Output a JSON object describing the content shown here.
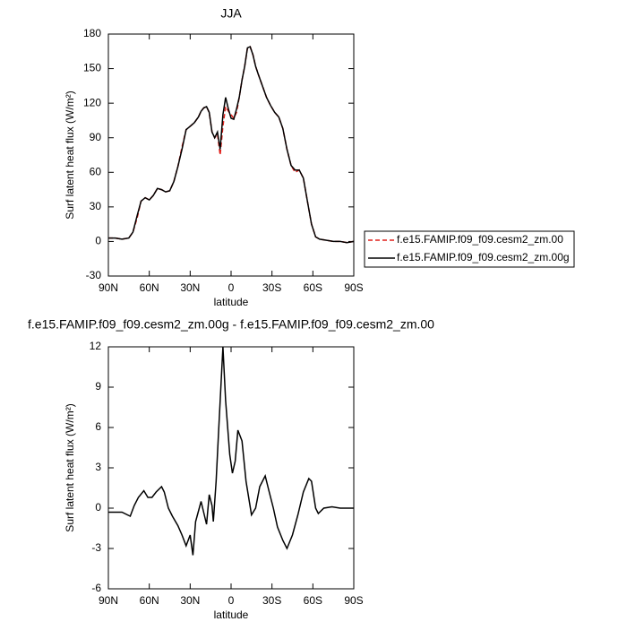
{
  "chart_data": [
    {
      "type": "line",
      "title": "JJA",
      "xlabel": "latitude",
      "ylabel": "Surf latent heat flux (W/m²)",
      "x": [
        90,
        85,
        80,
        75,
        72,
        69,
        66,
        63,
        60,
        57,
        54,
        51,
        48,
        45,
        42,
        39,
        36,
        33,
        30,
        27,
        24,
        22,
        20,
        18,
        16,
        14,
        12,
        10,
        8,
        6,
        4,
        2,
        0,
        -2,
        -4,
        -6,
        -8,
        -10,
        -12,
        -14,
        -16,
        -18,
        -20,
        -23,
        -26,
        -29,
        -32,
        -35,
        -38,
        -41,
        -44,
        -47,
        -50,
        -53,
        -56,
        -59,
        -62,
        -65,
        -70,
        -75,
        -80,
        -85,
        -90
      ],
      "series": [
        {
          "name": "f.e15.FAMIP.f09_f09.cesm2_zm.00",
          "color": "#e0201b",
          "line_style": "dashed",
          "values": [
            3,
            3,
            2,
            3,
            8,
            20,
            35,
            38,
            36,
            40,
            46,
            45,
            43,
            44,
            52,
            65,
            82,
            97,
            100,
            103,
            108,
            113,
            116,
            117,
            112,
            95,
            90,
            93,
            75,
            100,
            117,
            113,
            110,
            107,
            112,
            125,
            140,
            152,
            168,
            169,
            162,
            152,
            145,
            135,
            125,
            118,
            112,
            108,
            98,
            80,
            66,
            60,
            62,
            55,
            35,
            15,
            4,
            2,
            1,
            0,
            0,
            -1,
            0
          ]
        },
        {
          "name": "f.e15.FAMIP.f09_f09.cesm2_zm.00g",
          "color": "#000000",
          "line_style": "solid",
          "values": [
            3,
            3,
            2,
            3,
            8,
            22,
            35,
            38,
            36,
            40,
            46,
            45,
            43,
            44,
            52,
            65,
            80,
            97,
            100,
            103,
            108,
            113,
            116,
            117,
            112,
            95,
            90,
            95,
            80,
            110,
            125,
            115,
            107,
            106,
            115,
            125,
            140,
            152,
            168,
            169,
            162,
            152,
            145,
            135,
            125,
            118,
            112,
            108,
            98,
            80,
            66,
            62,
            62,
            55,
            35,
            15,
            4,
            2,
            1,
            0,
            0,
            -1,
            0
          ]
        }
      ],
      "xlim": [
        90,
        -90
      ],
      "xticks": [
        {
          "value": 90,
          "label": "90N"
        },
        {
          "value": 60,
          "label": "60N"
        },
        {
          "value": 30,
          "label": "30N"
        },
        0,
        {
          "value": -30,
          "label": "30S"
        },
        {
          "value": -60,
          "label": "60S"
        },
        {
          "value": -90,
          "label": "90S"
        }
      ],
      "ylim": [
        -30,
        180
      ],
      "yticks": [
        -30,
        0,
        30,
        60,
        90,
        120,
        150,
        180
      ],
      "legend": "right"
    },
    {
      "type": "line",
      "title": "f.e15.FAMIP.f09_f09.cesm2_zm.00g - f.e15.FAMIP.f09_f09.cesm2_zm.00",
      "xlabel": "latitude",
      "ylabel": "Surf latent heat flux (W/m²)",
      "x": [
        90,
        80,
        74,
        71,
        68,
        64,
        61,
        58,
        55,
        51,
        49,
        46,
        43,
        39,
        36,
        33,
        30,
        28,
        26,
        22,
        18,
        16,
        14,
        13,
        11,
        9,
        6,
        4,
        1,
        -1,
        -3,
        -5,
        -8,
        -11,
        -15,
        -18,
        -21,
        -25,
        -28,
        -31,
        -34,
        -38,
        -41,
        -45,
        -49,
        -53,
        -57,
        -59,
        -62,
        -64,
        -68,
        -74,
        -80,
        -90
      ],
      "series": [
        {
          "color": "#000000",
          "line_style": "solid",
          "values": [
            -0.3,
            -0.3,
            -0.6,
            0.2,
            0.8,
            1.3,
            0.8,
            0.8,
            1.2,
            1.6,
            1.2,
            0,
            -0.6,
            -1.3,
            -2,
            -2.8,
            -2,
            -3.5,
            -1,
            0.5,
            -1.2,
            1,
            0.2,
            -1,
            2,
            6,
            12,
            8,
            4,
            2.6,
            3.5,
            5.8,
            5,
            2,
            -0.5,
            0,
            1.6,
            2.4,
            1.2,
            0,
            -1.4,
            -2.4,
            -3,
            -2,
            -0.5,
            1.2,
            2.2,
            2,
            0,
            -0.4,
            0,
            0.1,
            0,
            0
          ]
        }
      ],
      "xlim": [
        90,
        -90
      ],
      "xticks": [
        {
          "value": 90,
          "label": "90N"
        },
        {
          "value": 60,
          "label": "60N"
        },
        {
          "value": 30,
          "label": "30N"
        },
        0,
        {
          "value": -30,
          "label": "30S"
        },
        {
          "value": -60,
          "label": "60S"
        },
        {
          "value": -90,
          "label": "90S"
        }
      ],
      "ylim": [
        -6,
        12
      ],
      "yticks": [
        -6,
        -3,
        0,
        3,
        6,
        9,
        12
      ]
    }
  ]
}
